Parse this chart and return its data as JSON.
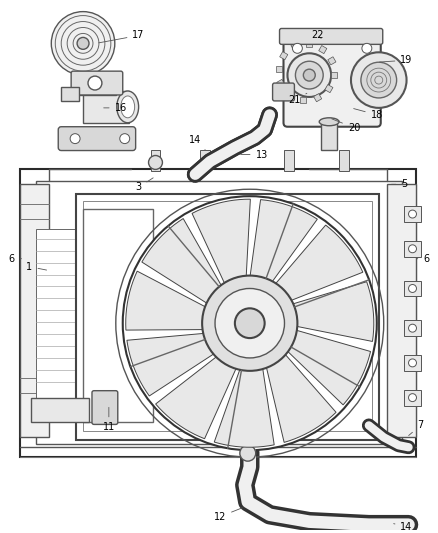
{
  "background_color": "#ffffff",
  "line_color": "#2a2a2a",
  "label_color": "#000000",
  "fig_width": 4.38,
  "fig_height": 5.33,
  "dpi": 100,
  "lw_main": 1.5,
  "lw_med": 1.0,
  "lw_thin": 0.7,
  "label_fs": 7.0
}
